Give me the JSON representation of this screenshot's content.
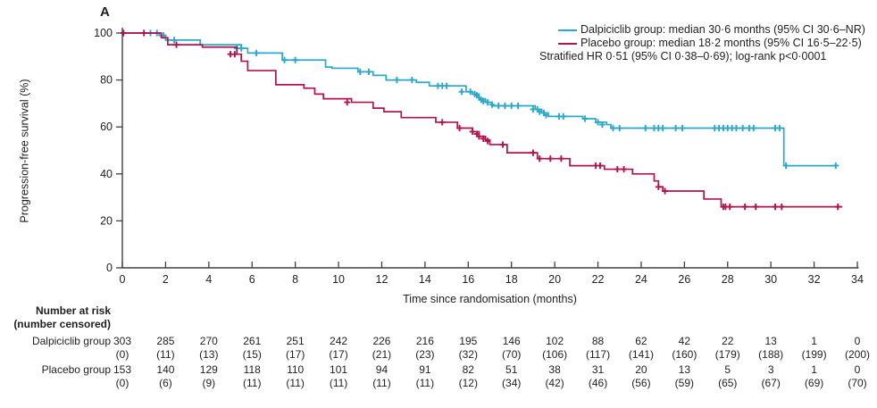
{
  "panel_label": "A",
  "colors": {
    "dalpiciclib": "#2BA8C8",
    "placebo": "#B0134D",
    "axis": "#404040",
    "text": "#1f1f1f"
  },
  "y_axis": {
    "label": "Progression-free survival (%)",
    "ticks": [
      0,
      20,
      40,
      60,
      80,
      100
    ]
  },
  "x_axis": {
    "label": "Time since randomisation (months)",
    "ticks": [
      0,
      2,
      4,
      6,
      8,
      10,
      12,
      14,
      16,
      18,
      20,
      22,
      24,
      26,
      28,
      30,
      32,
      34
    ]
  },
  "legend": {
    "items": [
      {
        "label": "Dalpiciclib group: median 30·6 months (95% CI 30·6–NR)",
        "color": "#2BA8C8"
      },
      {
        "label": "Placebo group: median 18·2 months (95% CI 16·5–22·5)",
        "color": "#B0134D"
      }
    ],
    "note": "Stratified HR 0·51 (95% CI 0·38–0·69); log-rank p<0·0001"
  },
  "chart_data": {
    "type": "line",
    "subtype": "kaplan-meier-step",
    "title": "",
    "xlabel": "Time since randomisation (months)",
    "ylabel": "Progression-free survival (%)",
    "xlim": [
      0,
      34
    ],
    "ylim": [
      0,
      100
    ],
    "grid": false,
    "legend_position": "top-right",
    "series": [
      {
        "name": "Dalpiciclib group",
        "median_months": "30·6",
        "ci": "30·6–NR",
        "color": "#2BA8C8",
        "steps": [
          [
            0,
            100
          ],
          [
            1.7,
            99
          ],
          [
            2.0,
            97
          ],
          [
            3.6,
            95
          ],
          [
            5.5,
            93.5
          ],
          [
            5.8,
            91.5
          ],
          [
            7.4,
            88.5
          ],
          [
            9.4,
            85.5
          ],
          [
            9.7,
            85
          ],
          [
            10.9,
            83.5
          ],
          [
            11.6,
            82
          ],
          [
            12.2,
            80
          ],
          [
            13.6,
            79
          ],
          [
            14.2,
            77.5
          ],
          [
            15.9,
            75
          ],
          [
            16.2,
            74
          ],
          [
            16.5,
            72
          ],
          [
            16.8,
            70.5
          ],
          [
            17.1,
            69
          ],
          [
            19.1,
            67.5
          ],
          [
            19.4,
            66
          ],
          [
            19.7,
            64.5
          ],
          [
            21.3,
            63.5
          ],
          [
            21.9,
            62
          ],
          [
            22.4,
            61
          ],
          [
            22.6,
            59.5
          ],
          [
            30.6,
            43.5
          ],
          [
            33.1,
            43.5
          ]
        ],
        "censors": [
          [
            1.3,
            100
          ],
          [
            1.6,
            100
          ],
          [
            1.9,
            99
          ],
          [
            2.4,
            97
          ],
          [
            5.3,
            93.5
          ],
          [
            5.5,
            93.5
          ],
          [
            6.2,
            91.5
          ],
          [
            7.5,
            88.5
          ],
          [
            8.0,
            88.5
          ],
          [
            11.0,
            83.5
          ],
          [
            11.4,
            83.5
          ],
          [
            12.7,
            80
          ],
          [
            13.4,
            80
          ],
          [
            14.6,
            77.5
          ],
          [
            14.8,
            77.5
          ],
          [
            15.0,
            77.5
          ],
          [
            15.7,
            75
          ],
          [
            16.1,
            75
          ],
          [
            16.3,
            74
          ],
          [
            16.4,
            73.5
          ],
          [
            16.5,
            72.5
          ],
          [
            16.6,
            71.5
          ],
          [
            16.7,
            71
          ],
          [
            16.9,
            70.5
          ],
          [
            17.1,
            69.5
          ],
          [
            17.4,
            69
          ],
          [
            17.7,
            69
          ],
          [
            18.0,
            69
          ],
          [
            18.3,
            69
          ],
          [
            19.0,
            67.5
          ],
          [
            19.2,
            67.5
          ],
          [
            19.3,
            66.5
          ],
          [
            19.5,
            66
          ],
          [
            19.6,
            65
          ],
          [
            20.2,
            64.5
          ],
          [
            20.4,
            64.5
          ],
          [
            21.4,
            63.5
          ],
          [
            22.0,
            62
          ],
          [
            22.2,
            61
          ],
          [
            22.7,
            59.5
          ],
          [
            23.0,
            59.5
          ],
          [
            24.2,
            59.5
          ],
          [
            24.6,
            59.5
          ],
          [
            24.8,
            59.5
          ],
          [
            25.0,
            59.5
          ],
          [
            25.6,
            59.5
          ],
          [
            25.9,
            59.5
          ],
          [
            27.4,
            59.5
          ],
          [
            27.6,
            59.5
          ],
          [
            27.8,
            59.5
          ],
          [
            28.0,
            59.5
          ],
          [
            28.2,
            59.5
          ],
          [
            28.4,
            59.5
          ],
          [
            28.7,
            59.5
          ],
          [
            29.0,
            59.5
          ],
          [
            29.2,
            59.5
          ],
          [
            30.2,
            59.5
          ],
          [
            30.4,
            59.5
          ],
          [
            30.7,
            43.5
          ],
          [
            33.0,
            43.5
          ]
        ]
      },
      {
        "name": "Placebo group",
        "median_months": "18·2",
        "ci": "16·5–22·5",
        "color": "#B0134D",
        "steps": [
          [
            0,
            100
          ],
          [
            1.8,
            98
          ],
          [
            2.1,
            95
          ],
          [
            3.7,
            94
          ],
          [
            5.3,
            91
          ],
          [
            5.5,
            88
          ],
          [
            5.8,
            84
          ],
          [
            7.1,
            78
          ],
          [
            8.4,
            76.5
          ],
          [
            8.9,
            74
          ],
          [
            9.3,
            72
          ],
          [
            10.6,
            70.5
          ],
          [
            11.6,
            68
          ],
          [
            12.1,
            66.5
          ],
          [
            12.9,
            64
          ],
          [
            14.5,
            62
          ],
          [
            15.5,
            59.5
          ],
          [
            16.2,
            58
          ],
          [
            16.5,
            56
          ],
          [
            16.8,
            54.5
          ],
          [
            17.0,
            52.5
          ],
          [
            17.8,
            49
          ],
          [
            19.2,
            46.5
          ],
          [
            20.7,
            43.5
          ],
          [
            22.3,
            42
          ],
          [
            23.6,
            40
          ],
          [
            24.6,
            37
          ],
          [
            24.8,
            34.5
          ],
          [
            25.0,
            32.7
          ],
          [
            26.9,
            29.3
          ],
          [
            27.7,
            26
          ],
          [
            33.3,
            26
          ]
        ],
        "censors": [
          [
            0.05,
            100
          ],
          [
            1.0,
            100
          ],
          [
            2.5,
            95
          ],
          [
            5.0,
            91
          ],
          [
            5.2,
            91
          ],
          [
            10.4,
            70.5
          ],
          [
            14.8,
            62
          ],
          [
            15.6,
            59.5
          ],
          [
            16.2,
            58
          ],
          [
            16.4,
            57
          ],
          [
            16.5,
            56
          ],
          [
            16.7,
            55
          ],
          [
            16.9,
            54
          ],
          [
            17.6,
            52.5
          ],
          [
            19.0,
            49
          ],
          [
            19.3,
            46.5
          ],
          [
            19.8,
            46.5
          ],
          [
            20.3,
            46.5
          ],
          [
            21.9,
            43.5
          ],
          [
            22.1,
            43.5
          ],
          [
            22.9,
            42
          ],
          [
            23.2,
            42
          ],
          [
            24.8,
            34.5
          ],
          [
            25.1,
            32.7
          ],
          [
            27.8,
            26
          ],
          [
            27.9,
            26
          ],
          [
            28.1,
            26
          ],
          [
            28.8,
            26
          ],
          [
            29.3,
            26
          ],
          [
            30.2,
            26
          ],
          [
            30.5,
            26
          ],
          [
            33.1,
            26
          ]
        ]
      }
    ]
  },
  "risk_table": {
    "header_line1": "Number at risk",
    "header_line2": "(number censored)",
    "time_points": [
      0,
      2,
      4,
      6,
      8,
      10,
      12,
      14,
      16,
      18,
      20,
      22,
      24,
      26,
      28,
      30,
      32,
      34
    ],
    "rows": [
      {
        "label": "Dalpiciclib group",
        "at_risk": [
          303,
          285,
          270,
          261,
          251,
          242,
          226,
          216,
          195,
          146,
          102,
          88,
          62,
          42,
          22,
          13,
          1,
          0
        ],
        "censored": [
          0,
          11,
          13,
          15,
          17,
          17,
          21,
          23,
          32,
          70,
          106,
          117,
          141,
          160,
          179,
          188,
          199,
          200
        ]
      },
      {
        "label": "Placebo group",
        "at_risk": [
          153,
          140,
          129,
          118,
          110,
          101,
          94,
          91,
          82,
          51,
          38,
          31,
          20,
          13,
          5,
          3,
          1,
          0
        ],
        "censored": [
          0,
          6,
          9,
          11,
          11,
          11,
          11,
          11,
          12,
          34,
          42,
          46,
          56,
          59,
          65,
          67,
          69,
          70
        ]
      }
    ]
  }
}
